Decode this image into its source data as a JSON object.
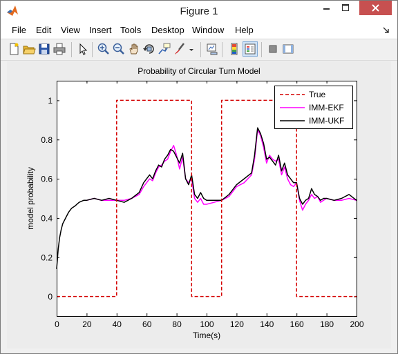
{
  "window": {
    "title": "Figure 1"
  },
  "menu": {
    "items": [
      "File",
      "Edit",
      "View",
      "Insert",
      "Tools",
      "Desktop",
      "Window",
      "Help"
    ]
  },
  "toolbar": {
    "icons": [
      "new-figure-icon",
      "open-file-icon",
      "save-icon",
      "print-icon",
      "select-arrow-icon",
      "zoom-in-icon",
      "zoom-out-icon",
      "pan-icon",
      "rotate-3d-icon",
      "data-cursor-icon",
      "brush-icon",
      "link-plot-icon",
      "colorbar-icon",
      "legend-icon",
      "hide-plot-tools-icon",
      "show-plot-tools-icon"
    ]
  },
  "colors": {
    "true": "#d40000",
    "imm_ekf": "#ff00ff",
    "imm_ukf": "#000000"
  },
  "chart_data": {
    "type": "line",
    "title": "Probability of Circular Turn Model",
    "xlabel": "Time(s)",
    "ylabel": "model probability",
    "xlim": [
      0,
      200
    ],
    "ylim": [
      -0.1,
      1.1
    ],
    "xticks": [
      "0",
      "20",
      "40",
      "60",
      "80",
      "100",
      "120",
      "140",
      "160",
      "180",
      "200"
    ],
    "yticks": [
      "0",
      "0.2",
      "0.4",
      "0.6",
      "0.8",
      "1"
    ],
    "legend_position": "top-right",
    "series": [
      {
        "name": "True",
        "style": "dashed",
        "x": [
          0,
          40,
          40,
          90,
          90,
          110,
          110,
          160,
          160,
          200
        ],
        "y": [
          0,
          0,
          1,
          1,
          0,
          0,
          1,
          1,
          0,
          0
        ]
      },
      {
        "name": "IMM-EKF",
        "style": "solid",
        "x": [
          20,
          25,
          30,
          35,
          40,
          45,
          50,
          55,
          58,
          60,
          62,
          64,
          66,
          68,
          70,
          72,
          74,
          76,
          78,
          80,
          82,
          84,
          86,
          88,
          90,
          92,
          94,
          96,
          98,
          100,
          105,
          110,
          115,
          120,
          125,
          130,
          132,
          134,
          136,
          138,
          140,
          142,
          144,
          146,
          148,
          150,
          152,
          154,
          156,
          158,
          160,
          162,
          164,
          166,
          168,
          170,
          172,
          174,
          176,
          178,
          180,
          185,
          190,
          195,
          200
        ],
        "y": [
          0.49,
          0.5,
          0.49,
          0.49,
          0.49,
          0.49,
          0.5,
          0.52,
          0.56,
          0.58,
          0.6,
          0.59,
          0.63,
          0.66,
          0.67,
          0.69,
          0.7,
          0.74,
          0.77,
          0.72,
          0.65,
          0.71,
          0.6,
          0.58,
          0.6,
          0.5,
          0.48,
          0.5,
          0.47,
          0.47,
          0.48,
          0.49,
          0.51,
          0.56,
          0.58,
          0.62,
          0.7,
          0.85,
          0.82,
          0.76,
          0.68,
          0.72,
          0.7,
          0.69,
          0.7,
          0.62,
          0.66,
          0.6,
          0.57,
          0.56,
          0.58,
          0.49,
          0.44,
          0.47,
          0.49,
          0.52,
          0.5,
          0.51,
          0.48,
          0.49,
          0.5,
          0.49,
          0.49,
          0.5,
          0.49
        ]
      },
      {
        "name": "IMM-UKF",
        "style": "solid",
        "x": [
          0,
          1,
          2,
          3,
          4,
          6,
          8,
          10,
          12,
          15,
          18,
          20,
          25,
          30,
          35,
          40,
          45,
          50,
          55,
          58,
          60,
          62,
          64,
          66,
          68,
          70,
          72,
          74,
          76,
          78,
          80,
          82,
          84,
          86,
          88,
          90,
          92,
          94,
          96,
          98,
          100,
          105,
          110,
          115,
          120,
          125,
          130,
          132,
          134,
          136,
          138,
          140,
          142,
          144,
          146,
          148,
          150,
          152,
          154,
          156,
          158,
          160,
          162,
          164,
          166,
          168,
          170,
          172,
          174,
          176,
          178,
          180,
          185,
          190,
          195,
          200
        ],
        "y": [
          0.14,
          0.24,
          0.3,
          0.34,
          0.37,
          0.4,
          0.43,
          0.45,
          0.46,
          0.48,
          0.49,
          0.49,
          0.5,
          0.49,
          0.5,
          0.49,
          0.48,
          0.5,
          0.53,
          0.58,
          0.6,
          0.62,
          0.6,
          0.64,
          0.67,
          0.66,
          0.7,
          0.72,
          0.75,
          0.74,
          0.71,
          0.68,
          0.73,
          0.6,
          0.57,
          0.62,
          0.52,
          0.5,
          0.53,
          0.5,
          0.49,
          0.49,
          0.49,
          0.52,
          0.57,
          0.6,
          0.63,
          0.72,
          0.86,
          0.83,
          0.78,
          0.7,
          0.71,
          0.69,
          0.67,
          0.72,
          0.64,
          0.68,
          0.62,
          0.6,
          0.58,
          0.58,
          0.5,
          0.47,
          0.49,
          0.5,
          0.55,
          0.52,
          0.51,
          0.49,
          0.5,
          0.5,
          0.49,
          0.5,
          0.52,
          0.49
        ]
      }
    ]
  }
}
